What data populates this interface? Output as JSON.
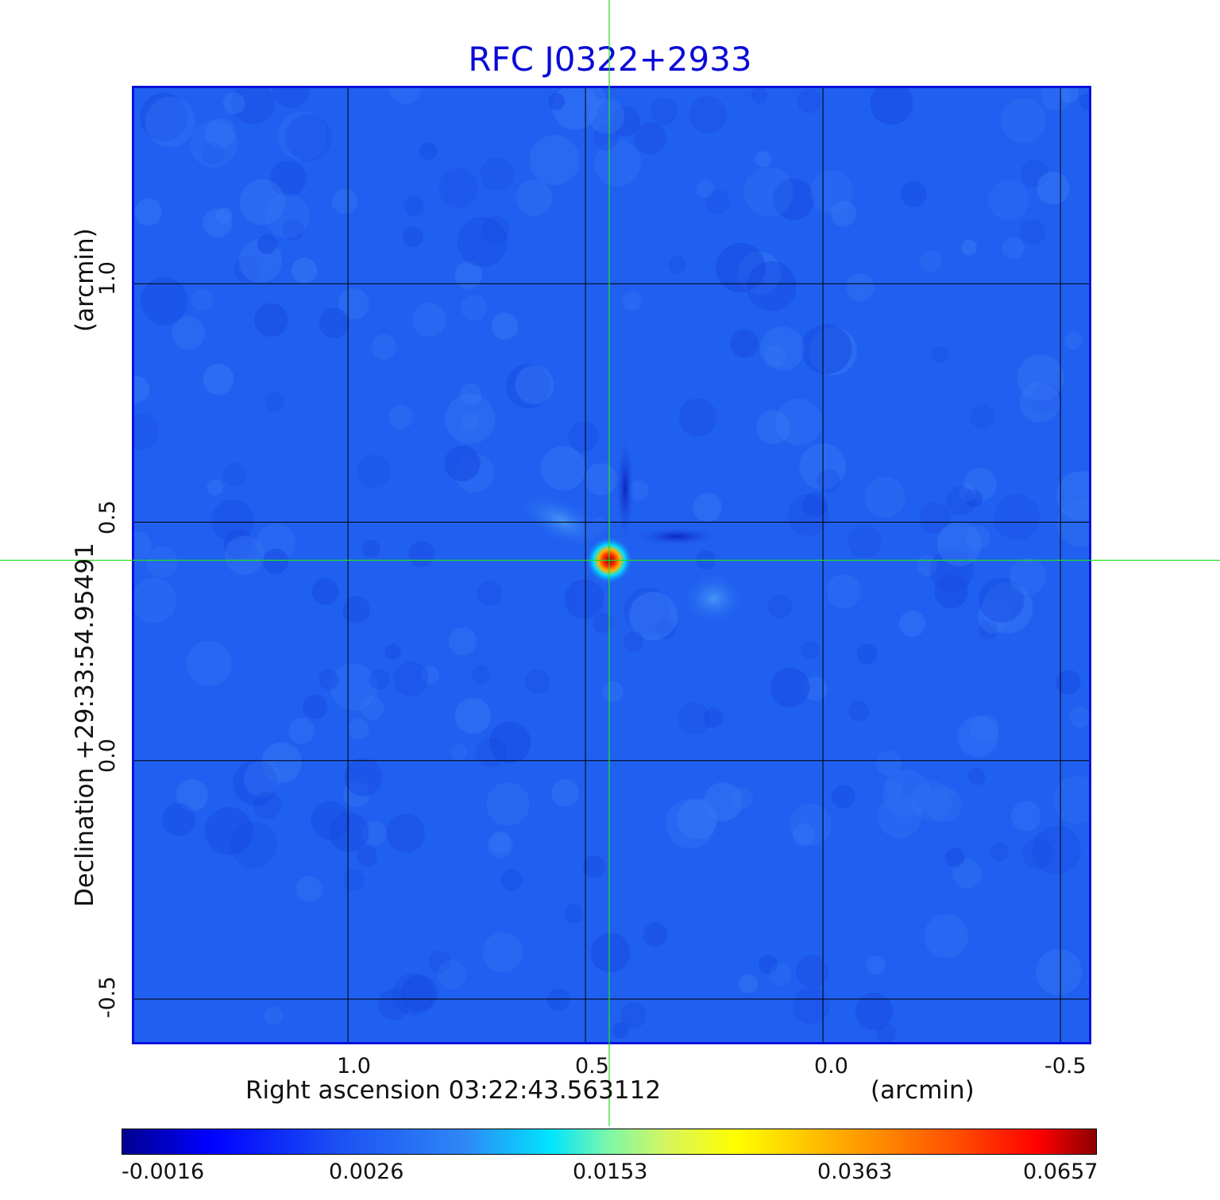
{
  "chart_data": {
    "type": "heatmap",
    "title": "RFC J0322+2933",
    "xlabel_main": "Right ascension  03:22:43.563112",
    "xlabel_unit": "(arcmin)",
    "ylabel_main": "Declination  +29:33:54.95491",
    "ylabel_unit": "(arcmin)",
    "x_ticks": [
      "1.0",
      "0.5",
      "0.0",
      "-0.5"
    ],
    "x_tick_values": [
      1.0,
      0.5,
      0.0,
      -0.5
    ],
    "y_ticks": [
      "1.0",
      "0.5",
      "0.0",
      "-0.5"
    ],
    "y_tick_values": [
      1.0,
      0.5,
      0.0,
      -0.5
    ],
    "xlim": [
      1.45,
      -0.56
    ],
    "ylim": [
      -0.59,
      1.41
    ],
    "grid": true,
    "crosshair": {
      "x": 0.45,
      "y": 0.42,
      "color": "#22e022"
    },
    "peak": {
      "x": 0.45,
      "y": 0.42,
      "value": 0.0657
    },
    "secondary_feature": {
      "x": 0.23,
      "y": 0.34
    },
    "colorbar": {
      "ticks": [
        "-0.0016",
        "0.0026",
        "0.0153",
        "0.0363",
        "0.0657"
      ],
      "colormap": "jet",
      "min": -0.0016,
      "max": 0.0657
    }
  }
}
